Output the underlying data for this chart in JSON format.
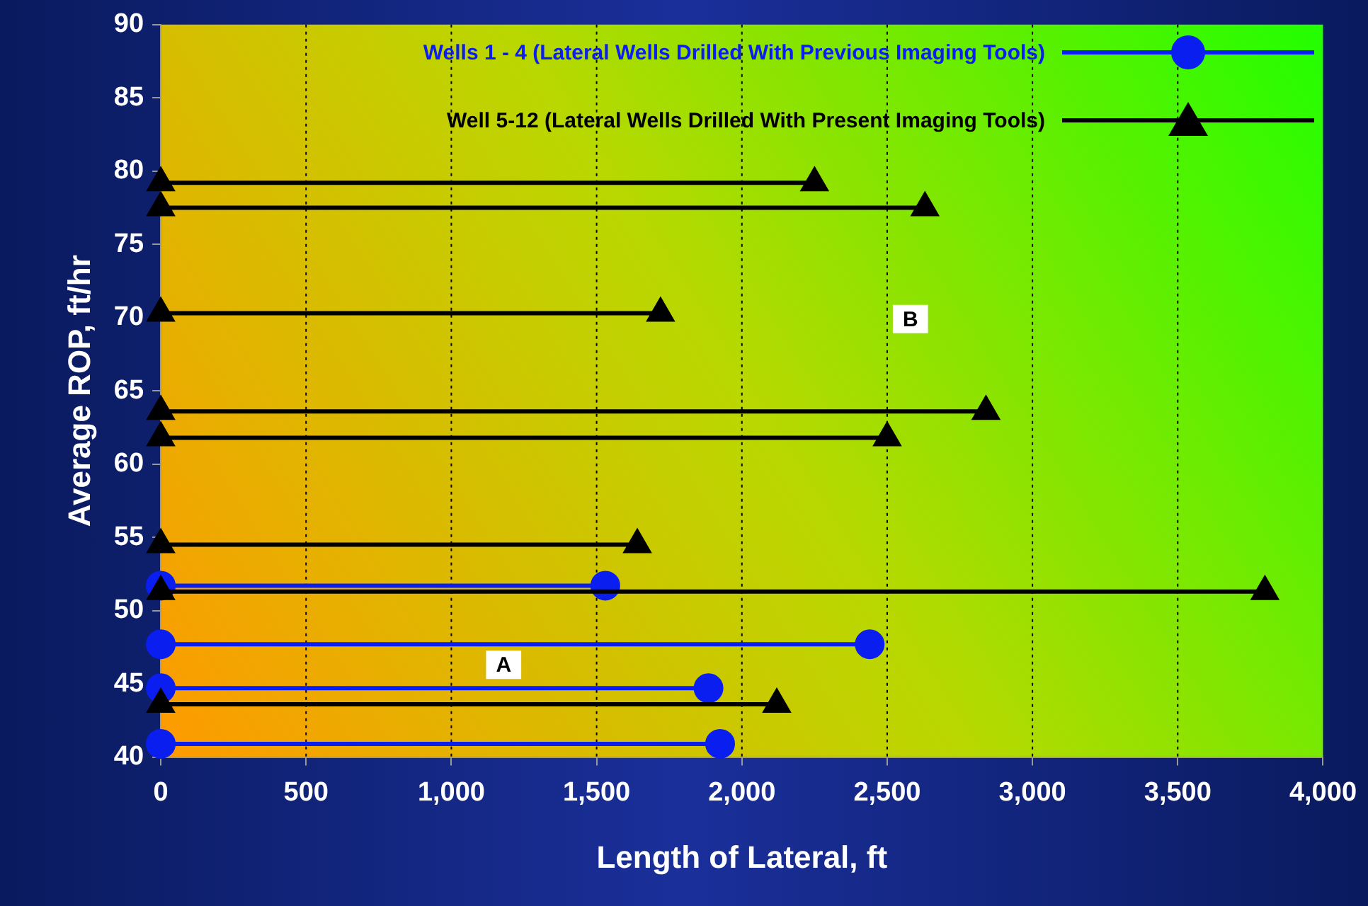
{
  "chart_data": {
    "type": "line",
    "xlabel": "Length of Lateral, ft",
    "ylabel": "Average ROP, ft/hr",
    "series": [
      {
        "name": "Wells 1 - 4 (Lateral Wells Drilled With Previous Imaging Tools)",
        "color": "#0a1ef0",
        "marker": "circle",
        "x": [
          0,
          1530,
          null,
          0,
          2440,
          null,
          0,
          1885,
          null,
          0,
          1925
        ],
        "values": [
          51.7,
          51.7,
          null,
          47.7,
          47.7,
          null,
          44.7,
          44.7,
          null,
          40.9,
          40.9
        ]
      },
      {
        "name": "Well 5-12 (Lateral Wells Drilled With Present Imaging Tools)",
        "color": "#000000",
        "marker": "triangle",
        "x": [
          0,
          2250,
          null,
          0,
          2630,
          null,
          0,
          1720,
          null,
          0,
          2840,
          null,
          0,
          2500,
          null,
          0,
          1640,
          null,
          0,
          3800,
          null,
          0,
          2120
        ],
        "values": [
          79.2,
          79.2,
          null,
          77.5,
          77.5,
          null,
          70.3,
          70.3,
          null,
          63.6,
          63.6,
          null,
          61.8,
          61.8,
          null,
          54.5,
          54.5,
          null,
          51.3,
          51.3,
          null,
          43.6,
          43.6
        ]
      }
    ],
    "xlim": [
      0,
      4000
    ],
    "xticks": [
      0,
      500,
      {
        "value": 1000,
        "label": "1,000"
      },
      {
        "value": 1500,
        "label": "1,500"
      },
      {
        "value": 2000,
        "label": "2,000"
      },
      {
        "value": 2500,
        "label": "2,500"
      },
      {
        "value": 3000,
        "label": "3,000"
      },
      {
        "value": 3500,
        "label": "3,500"
      },
      {
        "value": 4000,
        "label": "4,000"
      }
    ],
    "ylim": [
      40,
      90
    ],
    "yticks": [
      40,
      45,
      50,
      55,
      60,
      65,
      70,
      75,
      80,
      85,
      90
    ],
    "grid": "x",
    "legend": "top right",
    "line_style": "solid",
    "annotations": [
      {
        "text": "A",
        "x": 1180,
        "y": 46.3
      },
      {
        "text": "B",
        "x": 2580,
        "y": 69.9
      }
    ]
  }
}
